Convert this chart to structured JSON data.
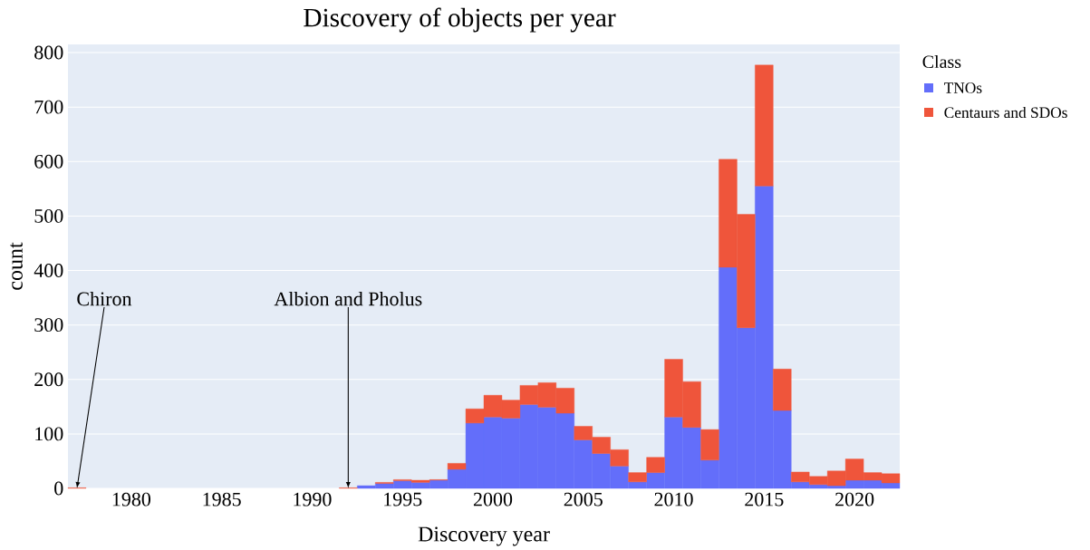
{
  "chart_data": {
    "type": "bar",
    "title": "Discovery of objects per year",
    "xlabel": "Discovery year",
    "ylabel": "count",
    "legend_title": "Class",
    "x": [
      1977,
      1978,
      1979,
      1980,
      1981,
      1982,
      1983,
      1984,
      1985,
      1986,
      1987,
      1988,
      1989,
      1990,
      1991,
      1992,
      1993,
      1994,
      1995,
      1996,
      1997,
      1998,
      1999,
      2000,
      2001,
      2002,
      2003,
      2004,
      2005,
      2006,
      2007,
      2008,
      2009,
      2010,
      2011,
      2012,
      2013,
      2014,
      2015,
      2016,
      2017,
      2018,
      2019,
      2020,
      2021,
      2022
    ],
    "series": [
      {
        "name": "TNOs",
        "color": "#636efa",
        "values": [
          0,
          0,
          0,
          0,
          0,
          0,
          0,
          0,
          0,
          0,
          0,
          0,
          0,
          0,
          0,
          null,
          5,
          9,
          14,
          11,
          15,
          35,
          120,
          131,
          129,
          154,
          149,
          138,
          89,
          64,
          41,
          12,
          29,
          131,
          112,
          52,
          406,
          295,
          555,
          143,
          12,
          7,
          5,
          15,
          15,
          10
        ]
      },
      {
        "name": "Centaurs and SDOs",
        "color": "#ef553b",
        "values": [
          1,
          0,
          0,
          0,
          0,
          0,
          0,
          0,
          0,
          0,
          0,
          0,
          0,
          0,
          0,
          1,
          0,
          2,
          2,
          4,
          1,
          11,
          26,
          40,
          33,
          35,
          45,
          46,
          25,
          30,
          30,
          17,
          28,
          106,
          84,
          56,
          198,
          208,
          222,
          76,
          18,
          15,
          27,
          39,
          14,
          17
        ]
      }
    ],
    "stacked": true,
    "xlim": [
      1976.5,
      2022.5
    ],
    "ylim": [
      0,
      815
    ],
    "xticks": [
      1980,
      1985,
      1990,
      1995,
      2000,
      2005,
      2010,
      2015,
      2020
    ],
    "yticks": [
      0,
      100,
      200,
      300,
      400,
      500,
      600,
      700,
      800
    ],
    "grid": "y",
    "legend": "top right",
    "annotations": [
      {
        "text": "Chiron",
        "x": 1977,
        "y": 0
      },
      {
        "text": "Albion and Pholus",
        "x": 1992,
        "y": 0
      }
    ]
  }
}
